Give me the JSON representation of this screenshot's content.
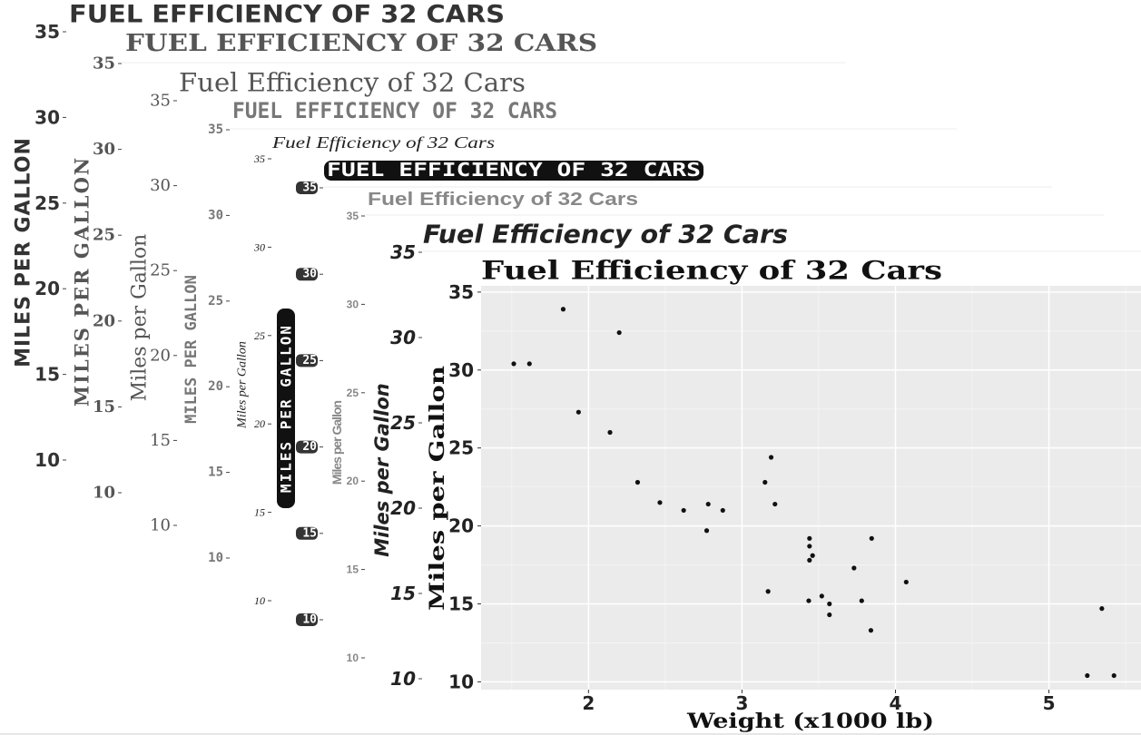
{
  "chart_data": [
    {
      "type": "scatter",
      "title": "FUEL EFFICIENCY OF 32 CARS",
      "ylabel": "MILES PER GALLON",
      "ylim": [
        10,
        35
      ],
      "yticks": [
        10,
        15,
        20,
        25,
        30,
        35
      ],
      "color": "#333333"
    },
    {
      "type": "scatter",
      "title": "FUEL EFFICIENCY OF 32 CARS",
      "ylabel": "MILES PER GALLON",
      "ylim": [
        10,
        35
      ],
      "yticks": [
        10,
        15,
        20,
        25,
        30,
        35
      ],
      "color": "#555555"
    },
    {
      "type": "scatter",
      "title": "Fuel Efficiency of 32 Cars",
      "ylabel": "Miles per Gallon",
      "ylim": [
        10,
        35
      ],
      "yticks": [
        10,
        15,
        20,
        25,
        30,
        35
      ],
      "color": "#555555"
    },
    {
      "type": "scatter",
      "title": "FUEL EFFICIENCY OF 32 CARS",
      "ylabel": "MILES PER GALLON",
      "ylim": [
        10,
        35
      ],
      "yticks": [
        10,
        15,
        20,
        25,
        30,
        35
      ],
      "color": "#777777"
    },
    {
      "type": "scatter",
      "title": "Fuel Efficiency of 32 Cars",
      "ylabel": "Miles per Gallon",
      "ylim": [
        10,
        35
      ],
      "yticks": [
        10,
        15,
        20,
        25,
        30,
        35
      ],
      "color": "#222222"
    },
    {
      "type": "scatter",
      "title": "FUEL EFFICIENCY OF 32 CARS",
      "ylabel": "MILES PER GALLON",
      "ylim": [
        10,
        35
      ],
      "yticks": [
        10,
        15,
        20,
        25,
        30,
        35
      ],
      "color": "#111111"
    },
    {
      "type": "scatter",
      "title": "Fuel Efficiency of 32 Cars",
      "ylabel": "Miles per Gallon",
      "ylim": [
        10,
        35
      ],
      "yticks": [
        10,
        15,
        20,
        25,
        30,
        35
      ],
      "color": "#888888"
    },
    {
      "type": "scatter",
      "title": "Fuel Efficiency of 32 Cars",
      "ylabel": "Miles per Gallon",
      "ylim": [
        10,
        35
      ],
      "yticks": [
        10,
        15,
        20,
        25,
        30,
        35
      ],
      "color": "#222222"
    },
    {
      "type": "scatter",
      "title": "Fuel Efficiency of 32 Cars",
      "xlabel": "Weight (x1000 lb)",
      "ylabel": "Miles per Gallon",
      "xlim": [
        1.3,
        5.6
      ],
      "ylim": [
        9.5,
        35.4
      ],
      "xticks": [
        2,
        3,
        4,
        5
      ],
      "yticks": [
        10,
        15,
        20,
        25,
        30,
        35
      ],
      "grid": true,
      "panel_color": "#ebebeb",
      "point_color": "#111111",
      "color": "#222222",
      "x": [
        2.62,
        2.875,
        2.32,
        3.215,
        3.44,
        3.46,
        3.57,
        3.19,
        3.15,
        3.44,
        3.44,
        4.07,
        3.73,
        3.78,
        5.25,
        5.424,
        5.345,
        2.2,
        1.615,
        1.835,
        2.465,
        3.52,
        3.435,
        3.84,
        3.845,
        1.935,
        2.14,
        1.513,
        3.17,
        2.77,
        3.57,
        2.78
      ],
      "y": [
        21.0,
        21.0,
        22.8,
        21.4,
        18.7,
        18.1,
        14.3,
        24.4,
        22.8,
        19.2,
        17.8,
        16.4,
        17.3,
        15.2,
        10.4,
        10.4,
        14.7,
        32.4,
        30.4,
        33.9,
        21.5,
        15.5,
        15.2,
        13.3,
        19.2,
        27.3,
        26.0,
        30.4,
        15.8,
        19.7,
        15.0,
        21.4
      ]
    }
  ]
}
